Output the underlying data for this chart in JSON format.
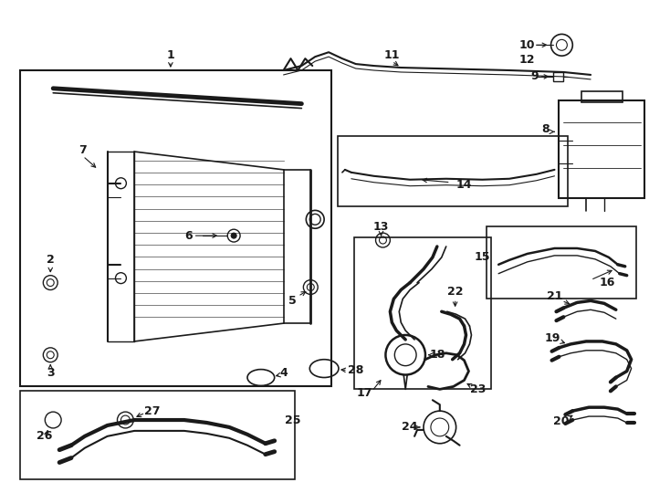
{
  "bg_color": "#ffffff",
  "line_color": "#1a1a1a",
  "figsize": [
    7.34,
    5.4
  ],
  "dpi": 100
}
